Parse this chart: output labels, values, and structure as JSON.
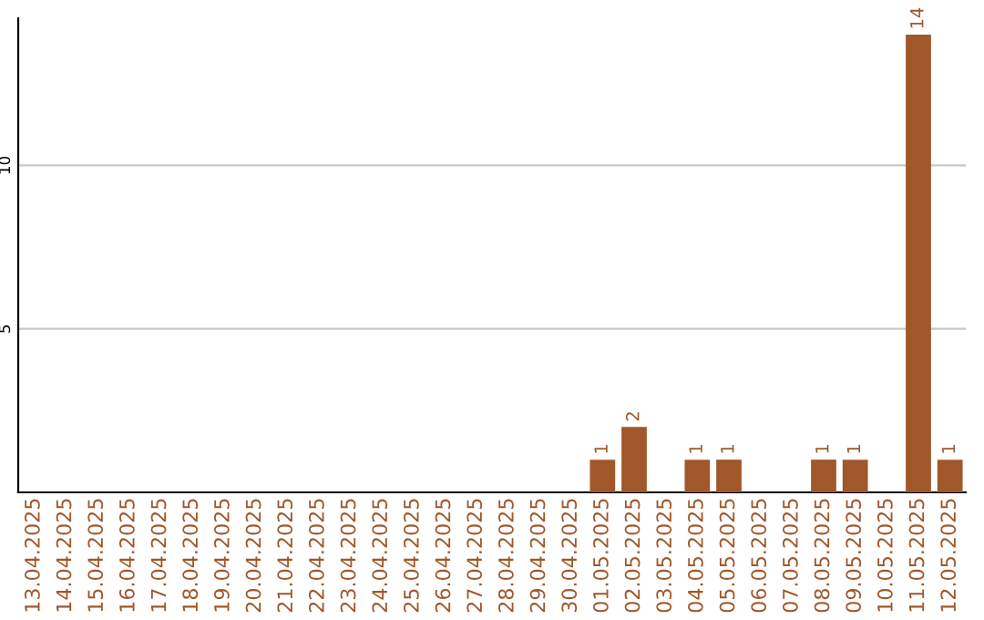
{
  "chart_data": {
    "type": "bar",
    "categories": [
      "13.04.2025",
      "14.04.2025",
      "15.04.2025",
      "16.04.2025",
      "17.04.2025",
      "18.04.2025",
      "19.04.2025",
      "20.04.2025",
      "21.04.2025",
      "22.04.2025",
      "23.04.2025",
      "24.04.2025",
      "25.04.2025",
      "26.04.2025",
      "27.04.2025",
      "28.04.2025",
      "29.04.2025",
      "30.04.2025",
      "01.05.2025",
      "02.05.2025",
      "03.05.2025",
      "04.05.2025",
      "05.05.2025",
      "06.05.2025",
      "07.05.2025",
      "08.05.2025",
      "09.05.2025",
      "10.05.2025",
      "11.05.2025",
      "12.05.2025"
    ],
    "values": [
      0,
      0,
      0,
      0,
      0,
      0,
      0,
      0,
      0,
      0,
      0,
      0,
      0,
      0,
      0,
      0,
      0,
      0,
      1,
      2,
      0,
      1,
      1,
      0,
      0,
      1,
      1,
      0,
      14,
      1
    ],
    "value_labels": [
      null,
      null,
      null,
      null,
      null,
      null,
      null,
      null,
      null,
      null,
      null,
      null,
      null,
      null,
      null,
      null,
      null,
      null,
      "1",
      "2",
      null,
      "1",
      "1",
      null,
      null,
      "1",
      "1",
      null,
      "14",
      "1"
    ],
    "color": "#a0572a",
    "ylim": [
      0,
      14.5
    ],
    "yticks": [
      5,
      10
    ],
    "grid": "y"
  }
}
